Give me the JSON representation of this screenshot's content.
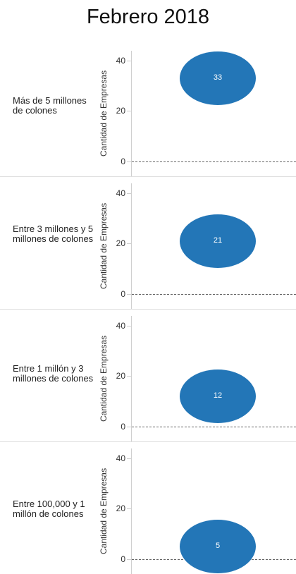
{
  "title": "Febrero 2018",
  "chart_data": [
    {
      "type": "scatter",
      "title": "Más de 5 millones de colones",
      "ylabel": "Cantidad de Empresas",
      "yticks": [
        "40",
        "20",
        "0"
      ],
      "ylim": [
        0,
        45
      ],
      "values": [
        33
      ],
      "data_labels": [
        "33"
      ],
      "color": "#2376b7"
    },
    {
      "type": "scatter",
      "title": "Entre 3 millones y 5 millones de colones",
      "ylabel": "Cantidad de Empresas",
      "yticks": [
        "40",
        "20",
        "0"
      ],
      "ylim": [
        0,
        45
      ],
      "values": [
        21
      ],
      "data_labels": [
        "21"
      ],
      "color": "#2376b7"
    },
    {
      "type": "scatter",
      "title": "Entre 1 millón y 3 millones de colones",
      "ylabel": "Cantidad de Empresas",
      "yticks": [
        "40",
        "20",
        "0"
      ],
      "ylim": [
        0,
        45
      ],
      "values": [
        12
      ],
      "data_labels": [
        "12"
      ],
      "color": "#2376b7"
    },
    {
      "type": "scatter",
      "title": "Entre 100,000 y 1 millón de colones",
      "ylabel": "Cantidad de Empresas",
      "yticks": [
        "40",
        "20",
        "0"
      ],
      "ylim": [
        0,
        45
      ],
      "values": [
        5
      ],
      "data_labels": [
        "5"
      ],
      "color": "#2376b7"
    }
  ]
}
